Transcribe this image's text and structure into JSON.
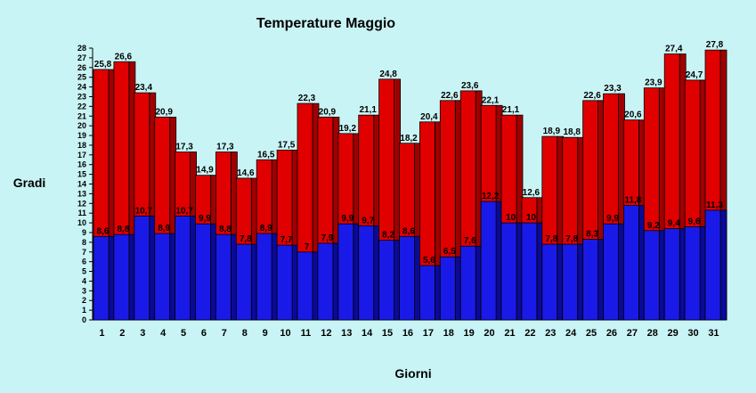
{
  "chart_data": {
    "type": "bar",
    "title": "Temperature Maggio",
    "xlabel": "Giorni",
    "ylabel": "Gradi",
    "ylim": [
      0,
      28
    ],
    "yticks": [
      0,
      1,
      2,
      3,
      4,
      5,
      6,
      7,
      8,
      9,
      10,
      11,
      12,
      13,
      14,
      15,
      16,
      17,
      18,
      19,
      20,
      21,
      22,
      23,
      24,
      25,
      26,
      27,
      28
    ],
    "categories": [
      "1",
      "2",
      "3",
      "4",
      "5",
      "6",
      "7",
      "8",
      "9",
      "10",
      "11",
      "12",
      "13",
      "14",
      "15",
      "16",
      "17",
      "18",
      "19",
      "20",
      "21",
      "22",
      "23",
      "24",
      "25",
      "26",
      "27",
      "28",
      "29",
      "30",
      "31"
    ],
    "series": [
      {
        "values": [
          25.8,
          26.6,
          23.4,
          20.9,
          17.3,
          14.9,
          17.3,
          14.6,
          16.5,
          17.5,
          22.3,
          20.9,
          19.2,
          21.1,
          24.8,
          18.2,
          20.4,
          22.6,
          23.6,
          22.1,
          21.1,
          12.6,
          18.9,
          18.8,
          22.6,
          23.3,
          20.6,
          23.9,
          27.4,
          24.7,
          27.8
        ],
        "labels": [
          "25,8",
          "26,6",
          "23,4",
          "20,9",
          "17,3",
          "14,9",
          "17,3",
          "14,6",
          "16,5",
          "17,5",
          "22,3",
          "20,9",
          "19,2",
          "21,1",
          "24,8",
          "18,2",
          "20,4",
          "22,6",
          "23,6",
          "22,1",
          "21,1",
          "12,6",
          "18,9",
          "18,8",
          "22,6",
          "23,3",
          "20,6",
          "23,9",
          "27,4",
          "24,7",
          "27,8"
        ],
        "color": "#e00000"
      },
      {
        "values": [
          8.6,
          8.8,
          10.7,
          8.9,
          10.7,
          9.9,
          8.8,
          7.8,
          8.9,
          7.7,
          7,
          7.9,
          9.9,
          9.7,
          8.2,
          8.6,
          5.6,
          6.5,
          7.6,
          12.2,
          10,
          10,
          7.8,
          7.8,
          8.3,
          9.9,
          11.8,
          9.2,
          9.4,
          9.6,
          11.3
        ],
        "labels": [
          "8,6",
          "8,8",
          "10,7",
          "8,9",
          "10,7",
          "9,9",
          "8,8",
          "7,8",
          "8,9",
          "7,7",
          "7",
          "7,9",
          "9,9",
          "9,7",
          "8,2",
          "8,6",
          "5,6",
          "6,5",
          "7,6",
          "12,2",
          "10",
          "10",
          "7,8",
          "7,8",
          "8,3",
          "9,9",
          "11,8",
          "9,2",
          "9,4",
          "9,6",
          "11,3"
        ],
        "color": "#1a1ae8"
      }
    ],
    "colors": {
      "background": "#c9f4f5",
      "plot_background": "#c9f4f5",
      "max_face": "#e00000",
      "max_side": "#a00000",
      "min_face": "#1a1ae8",
      "min_side": "#0a0a9a"
    },
    "grid": false,
    "legend": "none"
  }
}
